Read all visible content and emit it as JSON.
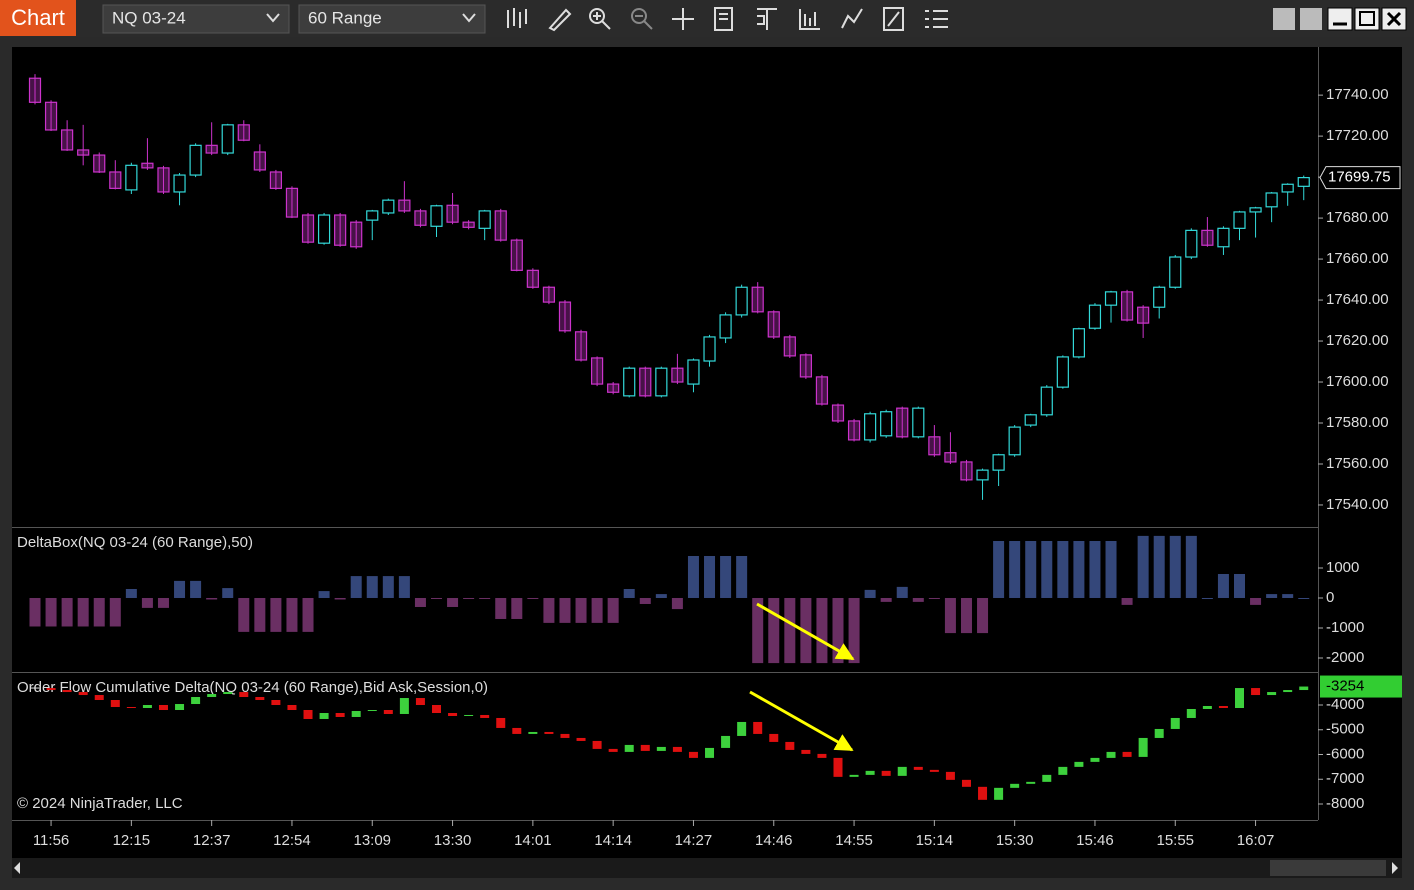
{
  "toolbar": {
    "title": "Chart",
    "instrument": "NQ 03-24",
    "interval": "60 Range"
  },
  "copyright": "© 2024 NinjaTrader, LLC",
  "chart_data": [
    {
      "type": "candlestick",
      "categories": [
        null,
        "11:56",
        null,
        null,
        null,
        null,
        "12:15",
        null,
        null,
        null,
        null,
        "12:37",
        null,
        null,
        null,
        null,
        "12:54",
        null,
        null,
        null,
        null,
        "13:09",
        null,
        null,
        null,
        null,
        "13:30",
        null,
        null,
        null,
        null,
        "14:01",
        null,
        null,
        null,
        null,
        "14:14",
        null,
        null,
        null,
        null,
        "14:27",
        null,
        null,
        null,
        null,
        "14:46",
        null,
        null,
        null,
        null,
        "14:55",
        null,
        null,
        null,
        null,
        "15:14",
        null,
        null,
        null,
        null,
        "15:30",
        null,
        null,
        null,
        null,
        "15:46",
        null,
        null,
        null,
        null,
        "15:55",
        null,
        null,
        null,
        null,
        "16:07",
        null,
        null,
        null
      ],
      "open": [
        17748.25,
        17736.5,
        17723,
        17713.25,
        17710.75,
        17702.5,
        17693.75,
        17706.75,
        17704.5,
        17692.75,
        17701,
        17715.5,
        17711.75,
        17725.5,
        17712.25,
        17702.5,
        17694.5,
        17681.5,
        17667.75,
        17681.5,
        17678,
        17679,
        17682.5,
        17688.75,
        17683.5,
        17676,
        17686.25,
        17678,
        17675,
        17683.5,
        17669.25,
        17654.5,
        17646.25,
        17639,
        17624.5,
        17611.75,
        17599,
        17593.25,
        17606.75,
        17593.25,
        17606.75,
        17599,
        17610.25,
        17621.5,
        17632.75,
        17646.25,
        17634.25,
        17622,
        17613.25,
        17602.5,
        17588.75,
        17581,
        17571.75,
        17573.75,
        17587.25,
        17573.25,
        17573.25,
        17565.5,
        17561,
        17552.25,
        17557,
        17564.5,
        17579,
        17584,
        17597.5,
        17612.25,
        17626.25,
        17637.5,
        17644,
        17636.5,
        17636.5,
        17646.25,
        17661,
        17674,
        17666,
        17675,
        17683,
        17685.5,
        17692.75,
        17695.5
      ],
      "high": [
        17750.25,
        17737.5,
        17727.75,
        17725.5,
        17712,
        17708.25,
        17707,
        17719,
        17705.5,
        17702,
        17716.5,
        17726.75,
        17726,
        17727.75,
        17716,
        17703.5,
        17695.5,
        17682.5,
        17682.5,
        17682.5,
        17679,
        17684,
        17689.5,
        17698,
        17684.5,
        17686.5,
        17692.25,
        17679,
        17684,
        17684.5,
        17670,
        17655.5,
        17647,
        17640,
        17625.5,
        17612.5,
        17600,
        17607.5,
        17607.5,
        17607.5,
        17613.75,
        17611.5,
        17623,
        17634,
        17647.5,
        17648.75,
        17635,
        17623,
        17614,
        17603.5,
        17589.5,
        17582,
        17585.5,
        17586.5,
        17588,
        17588,
        17579,
        17575.5,
        17562,
        17557.75,
        17565,
        17579,
        17584.5,
        17598.5,
        17613,
        17626.5,
        17638.5,
        17644.5,
        17645,
        17637.5,
        17647,
        17662,
        17675,
        17680.5,
        17676,
        17683.5,
        17685.5,
        17692.75,
        17697,
        17700.75
      ],
      "low": [
        17735.5,
        17722.5,
        17712.75,
        17705.75,
        17702,
        17694,
        17691.75,
        17703.5,
        17691.75,
        17686.25,
        17700,
        17710.75,
        17710.75,
        17717.5,
        17702.5,
        17693.75,
        17680,
        17667.5,
        17667,
        17666,
        17665,
        17669.25,
        17681.5,
        17682.5,
        17675.5,
        17670.75,
        17677,
        17674.5,
        17669.25,
        17668.5,
        17654,
        17645.5,
        17638,
        17624,
        17610,
        17598,
        17594,
        17592.5,
        17592.5,
        17592.5,
        17599,
        17595,
        17607.5,
        17619,
        17631.5,
        17633.5,
        17621,
        17611.75,
        17601.5,
        17588.5,
        17580,
        17571,
        17570.5,
        17572.75,
        17572.5,
        17572.5,
        17563.5,
        17560,
        17551.5,
        17542.5,
        17549.25,
        17563.5,
        17578,
        17583,
        17596.75,
        17611.5,
        17625.5,
        17629,
        17629.5,
        17621.5,
        17631,
        17645.5,
        17660,
        17666,
        17662,
        17669.25,
        17670.5,
        17678,
        17686,
        17688.75
      ],
      "close": [
        17736.5,
        17723,
        17713.25,
        17710.75,
        17702.5,
        17694.5,
        17705.75,
        17704.5,
        17692.75,
        17701,
        17715.5,
        17711.75,
        17725.5,
        17718,
        17703.5,
        17694.5,
        17680.5,
        17668.25,
        17681.5,
        17666.75,
        17666,
        17683.5,
        17688.75,
        17683.5,
        17676.5,
        17686,
        17678,
        17675.5,
        17683.5,
        17669.25,
        17654.5,
        17646.25,
        17639,
        17625,
        17610.75,
        17599,
        17595,
        17606.75,
        17593.25,
        17606.75,
        17600,
        17610.75,
        17622,
        17632.75,
        17646.25,
        17634.25,
        17622,
        17612.75,
        17602.5,
        17589.25,
        17581,
        17571.75,
        17584.5,
        17585.5,
        17573.25,
        17587.25,
        17564.5,
        17561,
        17552.25,
        17557,
        17564.5,
        17578,
        17584,
        17597.5,
        17612.25,
        17626,
        17637.5,
        17644,
        17630.25,
        17628.75,
        17646.25,
        17661,
        17674,
        17666.75,
        17675,
        17683,
        17685,
        17692.25,
        17696.5,
        17699.75
      ],
      "up_color": "#33d9d9",
      "down_color": "#cc33cc",
      "ylim": [
        17529.25,
        17763
      ],
      "yticks": [
        {
          "value": 17540,
          "label": "17540.00"
        },
        {
          "value": 17560,
          "label": "17560.00"
        },
        {
          "value": 17580,
          "label": "17580.00"
        },
        {
          "value": 17600,
          "label": "17600.00"
        },
        {
          "value": 17620,
          "label": "17620.00"
        },
        {
          "value": 17640,
          "label": "17640.00"
        },
        {
          "value": 17660,
          "label": "17660.00"
        },
        {
          "value": 17680,
          "label": "17680.00"
        },
        {
          "value": 17700,
          "label": "17700.00"
        },
        {
          "value": 17720,
          "label": "17720.00"
        },
        {
          "value": 17740,
          "label": "17740.00"
        }
      ]
    },
    {
      "type": "bar",
      "title": "DeltaBox(NQ 03-24 (60 Range),50)",
      "values": [
        -950,
        -950,
        -950,
        -950,
        -950,
        -950,
        300,
        -330,
        -330,
        570,
        570,
        -50,
        330,
        -1130,
        -1130,
        -1130,
        -1130,
        -1130,
        230,
        -50,
        730,
        730,
        730,
        730,
        -300,
        -30,
        -300,
        -30,
        -30,
        -700,
        -700,
        -30,
        -830,
        -830,
        -830,
        -830,
        -830,
        300,
        -200,
        130,
        -370,
        1400,
        1400,
        1400,
        1400,
        -2170,
        -2170,
        -2170,
        -2170,
        -2170,
        -2170,
        -2170,
        270,
        -130,
        370,
        -130,
        -30,
        -1170,
        -1170,
        -1170,
        1900,
        1900,
        1900,
        1900,
        1900,
        1900,
        1900,
        1900,
        -230,
        2070,
        2070,
        2070,
        2070,
        0,
        800,
        800,
        -230,
        130,
        130,
        0
      ],
      "up_color": "#34477a",
      "down_color": "#6a2f63",
      "ylim": [
        -2467,
        2333
      ],
      "yticks": [
        1000,
        0,
        -1000,
        -2000
      ]
    },
    {
      "type": "candlestick",
      "title": "Order Flow Cumulative Delta(NQ 03-24 (60 Range),Bid Ask,Session,0)",
      "close": [
        -3315,
        -3395,
        -3476,
        -3597,
        -3798,
        -4081,
        -4121,
        -4000,
        -4202,
        -3960,
        -3677,
        -3556,
        -3476,
        -3677,
        -3798,
        -4000,
        -4202,
        -4565,
        -4323,
        -4484,
        -4242,
        -4202,
        -4363,
        -3718,
        -4000,
        -4323,
        -4444,
        -4403,
        -4524,
        -4927,
        -5169,
        -5089,
        -5169,
        -5331,
        -5452,
        -5774,
        -5895,
        -5613,
        -5855,
        -5694,
        -5895,
        -6137,
        -5734,
        -5250,
        -4685,
        -5169,
        -5492,
        -5815,
        -5976,
        -6137,
        -6903,
        -6823,
        -6661,
        -6863,
        -6500,
        -6621,
        -6702,
        -7024,
        -7306,
        -7831,
        -7347,
        -7185,
        -7105,
        -6823,
        -6500,
        -6298,
        -6137,
        -5895,
        -6097,
        -5331,
        -4968,
        -4524,
        -4161,
        -4040,
        -4121,
        -3315,
        -3597,
        -3476,
        -3395,
        -3254
      ],
      "up_color": "#3dd13d",
      "down_color": "#e01010",
      "last_color": "#32cd32",
      "ylim": [
        -8646,
        -2707
      ],
      "yticks": [
        -4000,
        -5000,
        -6000,
        -7000,
        -8000
      ]
    }
  ]
}
